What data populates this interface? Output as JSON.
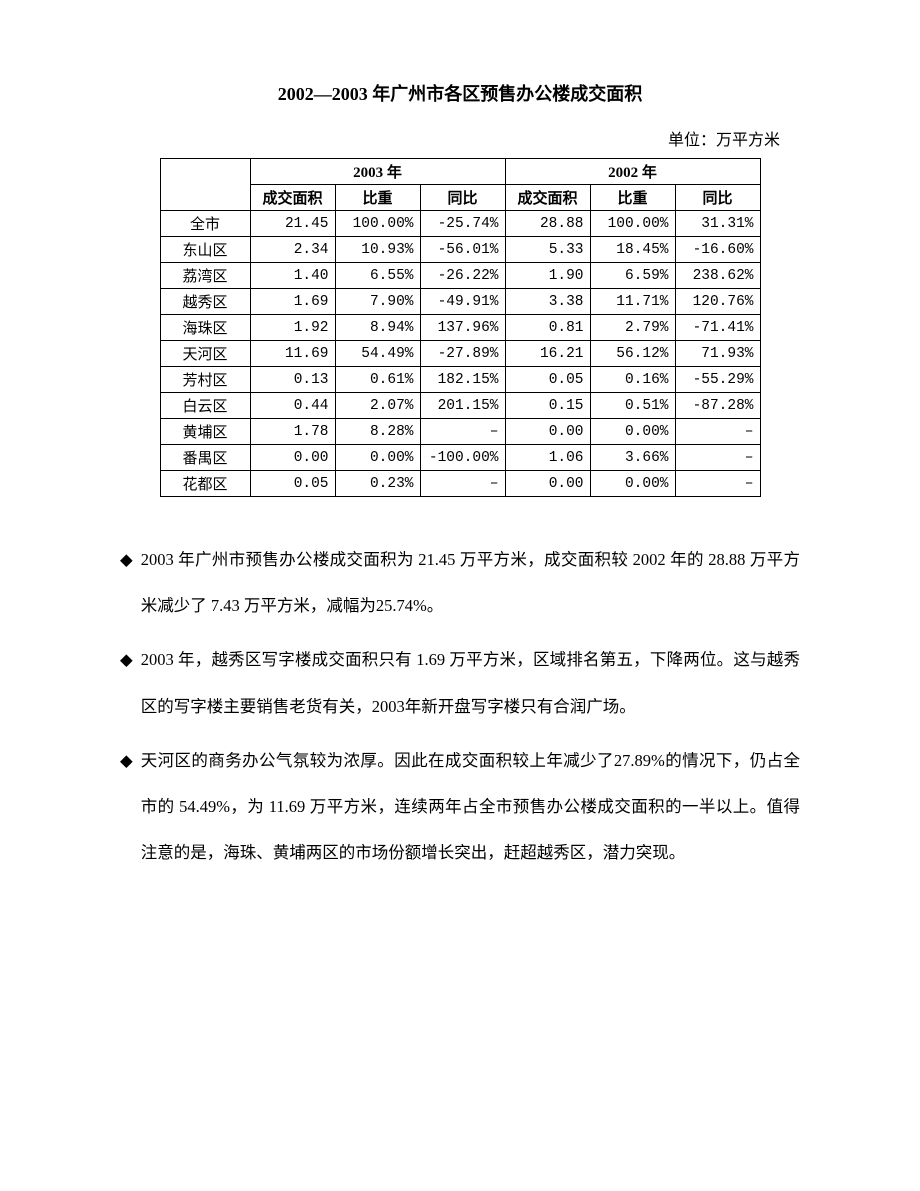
{
  "title": "2002—2003 年广州市各区预售办公楼成交面积",
  "unit": "单位：万平方米",
  "table": {
    "year_headers": [
      "2003 年",
      "2002 年"
    ],
    "sub_headers": [
      "成交面积",
      "比重",
      "同比",
      "成交面积",
      "比重",
      "同比"
    ],
    "rows": [
      {
        "label": "全市",
        "cells": [
          "21.45",
          "100.00%",
          "-25.74%",
          "28.88",
          "100.00%",
          "31.31%"
        ]
      },
      {
        "label": "东山区",
        "cells": [
          "2.34",
          "10.93%",
          "-56.01%",
          "5.33",
          "18.45%",
          "-16.60%"
        ]
      },
      {
        "label": "荔湾区",
        "cells": [
          "1.40",
          "6.55%",
          "-26.22%",
          "1.90",
          "6.59%",
          "238.62%"
        ]
      },
      {
        "label": "越秀区",
        "cells": [
          "1.69",
          "7.90%",
          "-49.91%",
          "3.38",
          "11.71%",
          "120.76%"
        ]
      },
      {
        "label": "海珠区",
        "cells": [
          "1.92",
          "8.94%",
          "137.96%",
          "0.81",
          "2.79%",
          "-71.41%"
        ]
      },
      {
        "label": "天河区",
        "cells": [
          "11.69",
          "54.49%",
          "-27.89%",
          "16.21",
          "56.12%",
          "71.93%"
        ]
      },
      {
        "label": "芳村区",
        "cells": [
          "0.13",
          "0.61%",
          "182.15%",
          "0.05",
          "0.16%",
          "-55.29%"
        ]
      },
      {
        "label": "白云区",
        "cells": [
          "0.44",
          "2.07%",
          "201.15%",
          "0.15",
          "0.51%",
          "-87.28%"
        ]
      },
      {
        "label": "黄埔区",
        "cells": [
          "1.78",
          "8.28%",
          "–",
          "0.00",
          "0.00%",
          "–"
        ]
      },
      {
        "label": "番禺区",
        "cells": [
          "0.00",
          "0.00%",
          "-100.00%",
          "1.06",
          "3.66%",
          "–"
        ]
      },
      {
        "label": "花都区",
        "cells": [
          "0.05",
          "0.23%",
          "–",
          "0.00",
          "0.00%",
          "–"
        ]
      }
    ]
  },
  "bullets": [
    "2003 年广州市预售办公楼成交面积为 21.45 万平方米，成交面积较 2002 年的 28.88 万平方米减少了 7.43 万平方米，减幅为25.74%。",
    "2003 年，越秀区写字楼成交面积只有 1.69 万平方米，区域排名第五，下降两位。这与越秀区的写字楼主要销售老货有关，2003年新开盘写字楼只有合润广场。",
    "天河区的商务办公气氛较为浓厚。因此在成交面积较上年减少了27.89%的情况下，仍占全市的 54.49%，为 11.69 万平方米，连续两年占全市预售办公楼成交面积的一半以上。值得注意的是，海珠、黄埔两区的市场份额增长突出，赶超越秀区，潜力突现。"
  ],
  "bullet_marker": "◆"
}
